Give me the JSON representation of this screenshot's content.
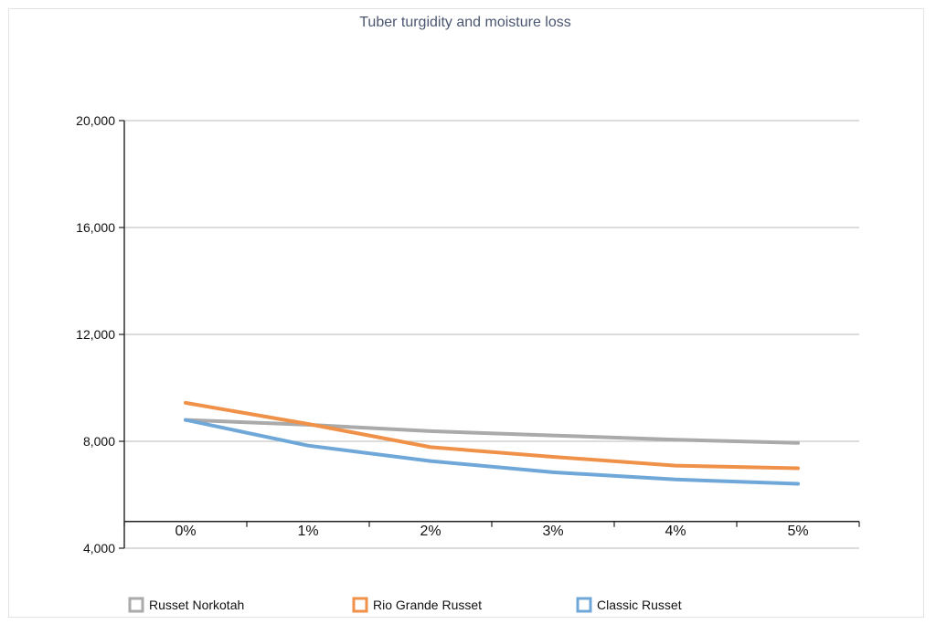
{
  "chart_data": {
    "type": "line",
    "title": "Tuber turgidity and moisture loss",
    "xlabel": "",
    "ylabel": "",
    "categories": [
      "0%",
      "1%",
      "2%",
      "3%",
      "4%",
      "5%"
    ],
    "ylim": [
      4000,
      20000
    ],
    "yticks": [
      4000,
      8000,
      12000,
      16000,
      20000
    ],
    "ytick_labels": [
      "4,000",
      "8,000",
      "12,000",
      "16,000",
      "20,000"
    ],
    "x_axis_crosses_at": 5000,
    "grid": true,
    "legend_position": "bottom",
    "series": [
      {
        "name": "Russet Norkotah",
        "color": "#aaaaaa",
        "values": [
          8800,
          8620,
          8380,
          8220,
          8060,
          7940
        ]
      },
      {
        "name": "Rio Grande Russet",
        "color": "#f0914a",
        "values": [
          9440,
          8650,
          7780,
          7420,
          7090,
          6990
        ]
      },
      {
        "name": "Classic Russet",
        "color": "#6fa8d8",
        "values": [
          8800,
          7840,
          7260,
          6840,
          6570,
          6410
        ]
      }
    ]
  }
}
